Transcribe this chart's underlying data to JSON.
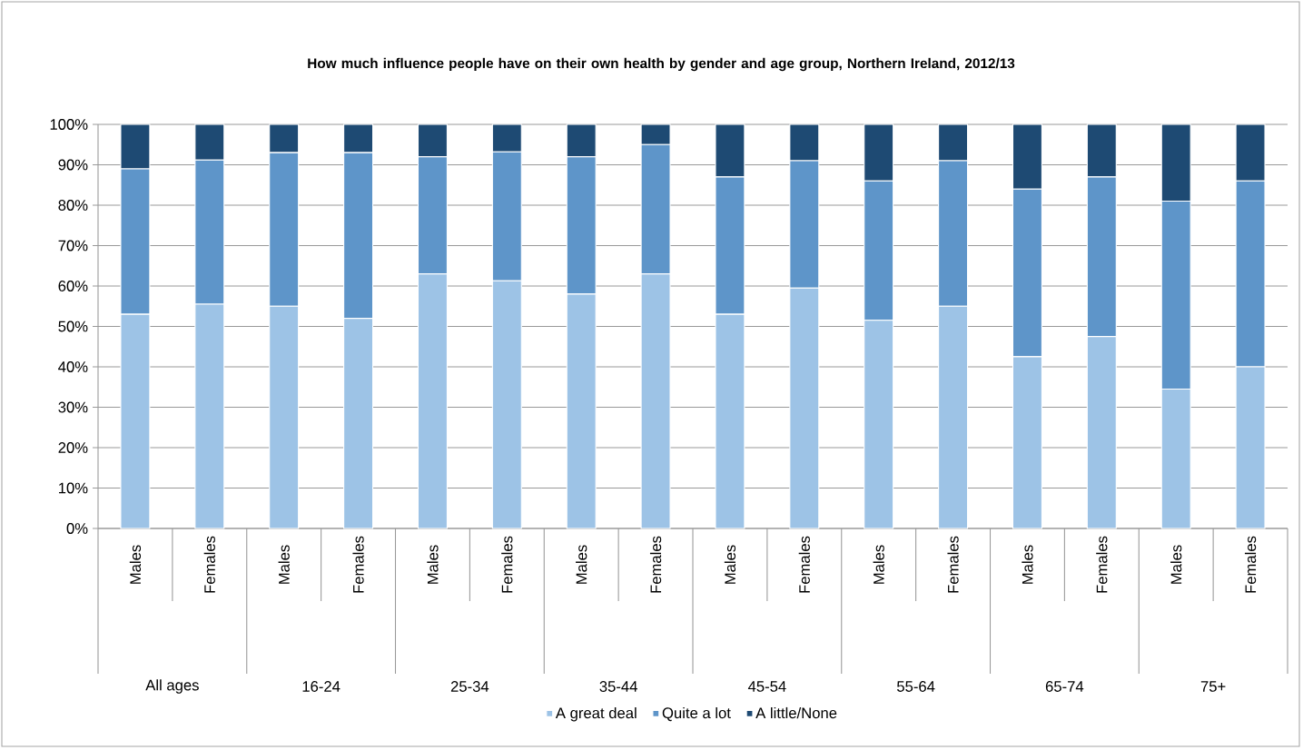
{
  "chart_data": {
    "type": "bar",
    "stacked": true,
    "title": "How much influence people have on their own health by gender and age group, Northern Ireland, 2012/13",
    "categories": [
      "Males",
      "Females",
      "Males",
      "Females",
      "Males",
      "Females",
      "Males",
      "Females",
      "Males",
      "Females",
      "Males",
      "Females",
      "Males",
      "Females",
      "Males",
      "Females"
    ],
    "annotations": [
      "All ages",
      "16-24",
      "25-34",
      "35-44",
      "45-54",
      "55-64",
      "65-74",
      "75+"
    ],
    "series": [
      {
        "name": "A great deal",
        "color": "#9dc3e6",
        "values": [
          53,
          55.5,
          55,
          52,
          63,
          61.3,
          58,
          63,
          53,
          59.5,
          51.5,
          55,
          42.5,
          47.5,
          34.5,
          40
        ]
      },
      {
        "name": "Quite a lot",
        "color": "#5e95c9",
        "values": [
          36,
          35.7,
          38,
          41,
          29,
          31.9,
          34,
          32,
          34,
          31.5,
          34.5,
          36,
          41.5,
          39.5,
          46.5,
          46
        ]
      },
      {
        "name": "A little/None",
        "color": "#1e4a73",
        "values": [
          11,
          8.8,
          7,
          7,
          8,
          6.8,
          8,
          5,
          13,
          9,
          14,
          9,
          16,
          13,
          19,
          14
        ]
      }
    ],
    "ylim": [
      0,
      100
    ],
    "yticks": [
      {
        "value": 0,
        "label": "0%"
      },
      {
        "value": 10,
        "label": "10%"
      },
      {
        "value": 20,
        "label": "20%"
      },
      {
        "value": 30,
        "label": "30%"
      },
      {
        "value": 40,
        "label": "40%"
      },
      {
        "value": 50,
        "label": "50%"
      },
      {
        "value": 60,
        "label": "60%"
      },
      {
        "value": 70,
        "label": "70%"
      },
      {
        "value": 80,
        "label": "80%"
      },
      {
        "value": 90,
        "label": "90%"
      },
      {
        "value": 100,
        "label": "100%"
      }
    ],
    "grid": "y",
    "legend": "bottom"
  }
}
